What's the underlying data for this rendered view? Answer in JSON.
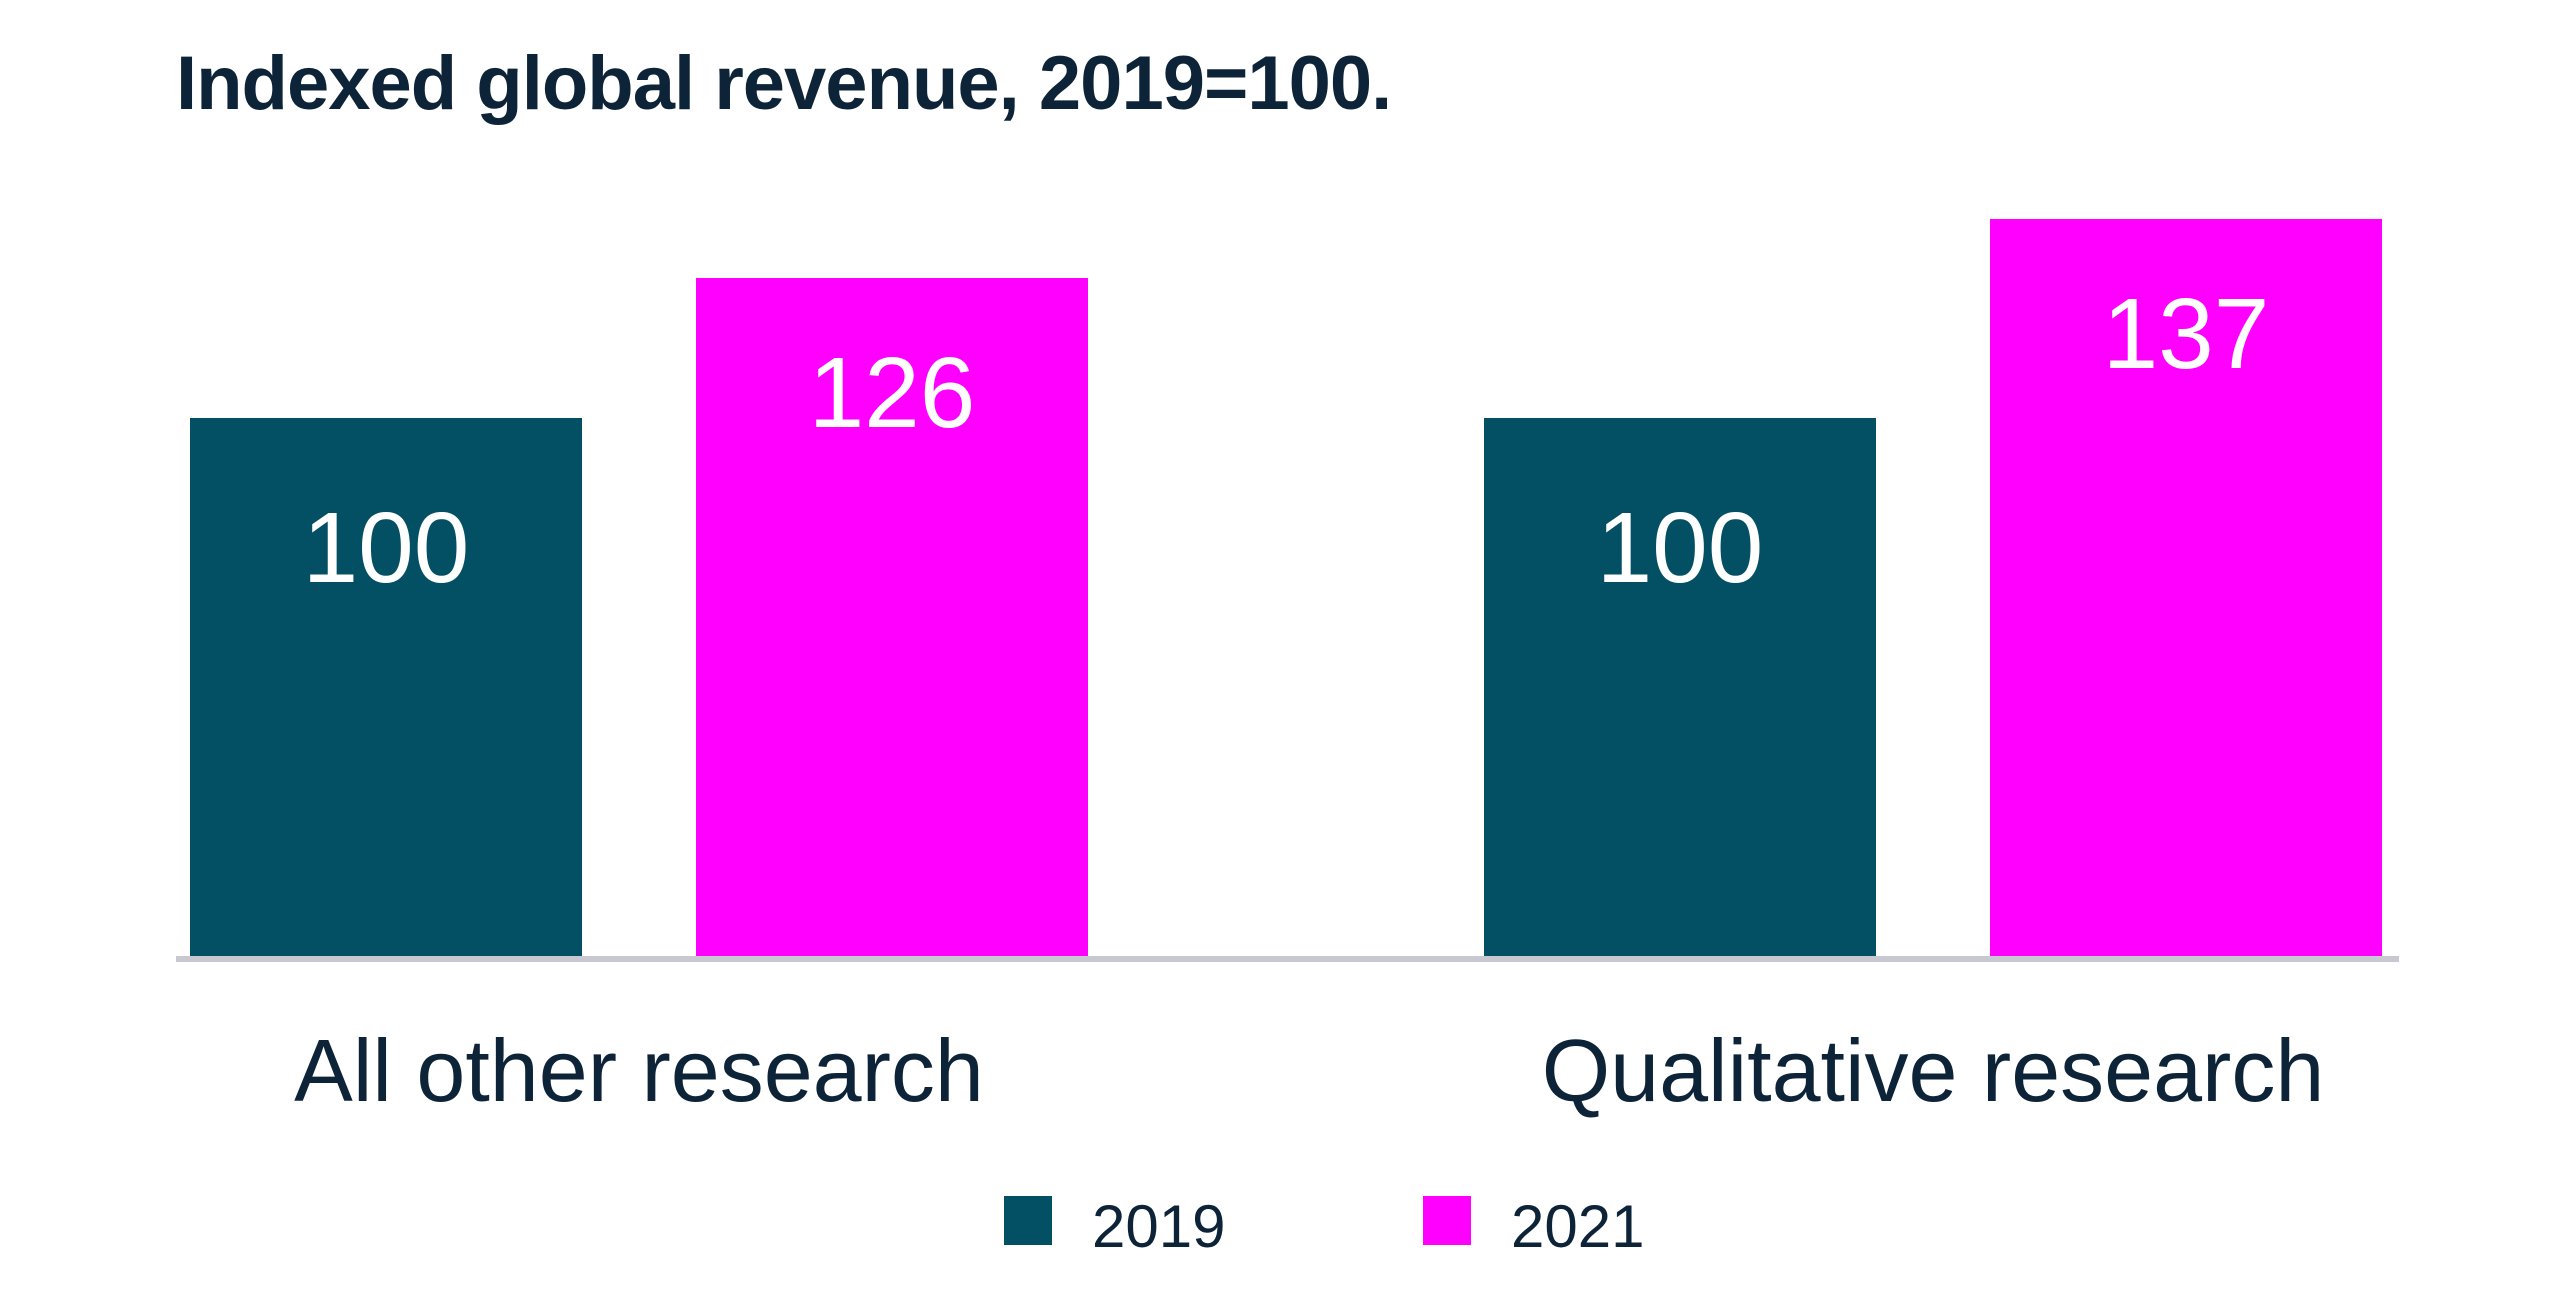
{
  "chart_data": {
    "type": "bar",
    "title": "Indexed global revenue, 2019=100.",
    "categories": [
      "All other research",
      "Qualitative research"
    ],
    "series": [
      {
        "name": "2019",
        "values": [
          100,
          100
        ],
        "color": "#034f63"
      },
      {
        "name": "2021",
        "values": [
          126,
          137
        ],
        "color": "#ff00ff"
      }
    ],
    "xlabel": "",
    "ylabel": "",
    "ylim": [
      0,
      140
    ],
    "grid": false,
    "legend": "bottom-center",
    "axis_color": "#c8c8d0"
  }
}
